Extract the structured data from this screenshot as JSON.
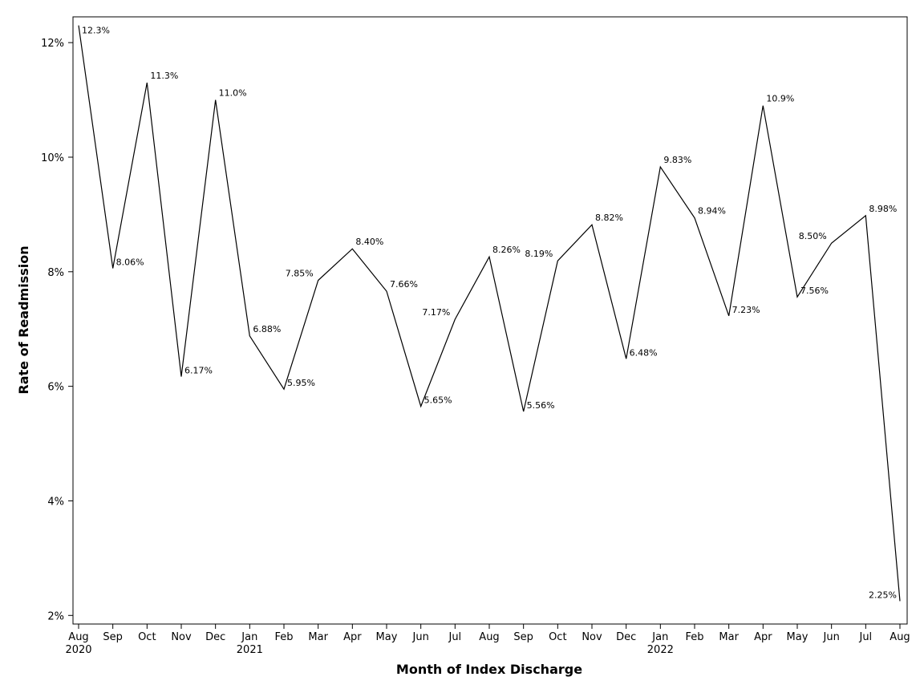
{
  "chart_data": {
    "type": "line",
    "title": "",
    "xlabel": "Month of Index Discharge",
    "ylabel": "Rate of Readmission",
    "y_unit": "%",
    "ylim": [
      1.85,
      12.45
    ],
    "yticks": [
      2,
      4,
      6,
      8,
      10,
      12
    ],
    "ytick_labels": [
      "2%",
      "4%",
      "6%",
      "8%",
      "10%",
      "12%"
    ],
    "grid": false,
    "line_color": "#000000",
    "x": [
      "2020-08",
      "2020-09",
      "2020-10",
      "2020-11",
      "2020-12",
      "2021-01",
      "2021-02",
      "2021-03",
      "2021-04",
      "2021-05",
      "2021-06",
      "2021-07",
      "2021-08",
      "2021-09",
      "2021-10",
      "2021-11",
      "2021-12",
      "2022-01",
      "2022-02",
      "2022-03",
      "2022-04",
      "2022-05",
      "2022-06",
      "2022-07",
      "2022-08"
    ],
    "x_tick_labels": [
      "Aug",
      "Sep",
      "Oct",
      "Nov",
      "Dec",
      "Jan",
      "Feb",
      "Mar",
      "Apr",
      "May",
      "Jun",
      "Jul",
      "Aug",
      "Sep",
      "Oct",
      "Nov",
      "Dec",
      "Jan",
      "Feb",
      "Mar",
      "Apr",
      "May",
      "Jun",
      "Jul",
      "Aug"
    ],
    "x_year_labels": [
      "2020",
      "",
      "",
      "",
      "",
      "2021",
      "",
      "",
      "",
      "",
      "",
      "",
      "",
      "",
      "",
      "",
      "",
      "2022",
      "",
      "",
      "",
      "",
      "",
      "",
      ""
    ],
    "values": [
      12.3,
      8.06,
      11.3,
      6.17,
      11.0,
      6.88,
      5.95,
      7.85,
      8.4,
      7.66,
      5.65,
      7.17,
      8.26,
      5.56,
      8.19,
      8.82,
      6.48,
      9.83,
      8.94,
      7.23,
      10.9,
      7.56,
      8.5,
      8.98,
      2.25
    ],
    "data_labels": [
      "12.3%",
      "8.06%",
      "11.3%",
      "6.17%",
      "11.0%",
      "6.88%",
      "5.95%",
      "7.85%",
      "8.40%",
      "7.66%",
      "5.65%",
      "7.17%",
      "8.26%",
      "5.56%",
      "8.19%",
      "8.82%",
      "6.48%",
      "9.83%",
      "8.94%",
      "7.23%",
      "10.9%",
      "7.56%",
      "8.50%",
      "8.98%",
      "2.25%"
    ]
  }
}
